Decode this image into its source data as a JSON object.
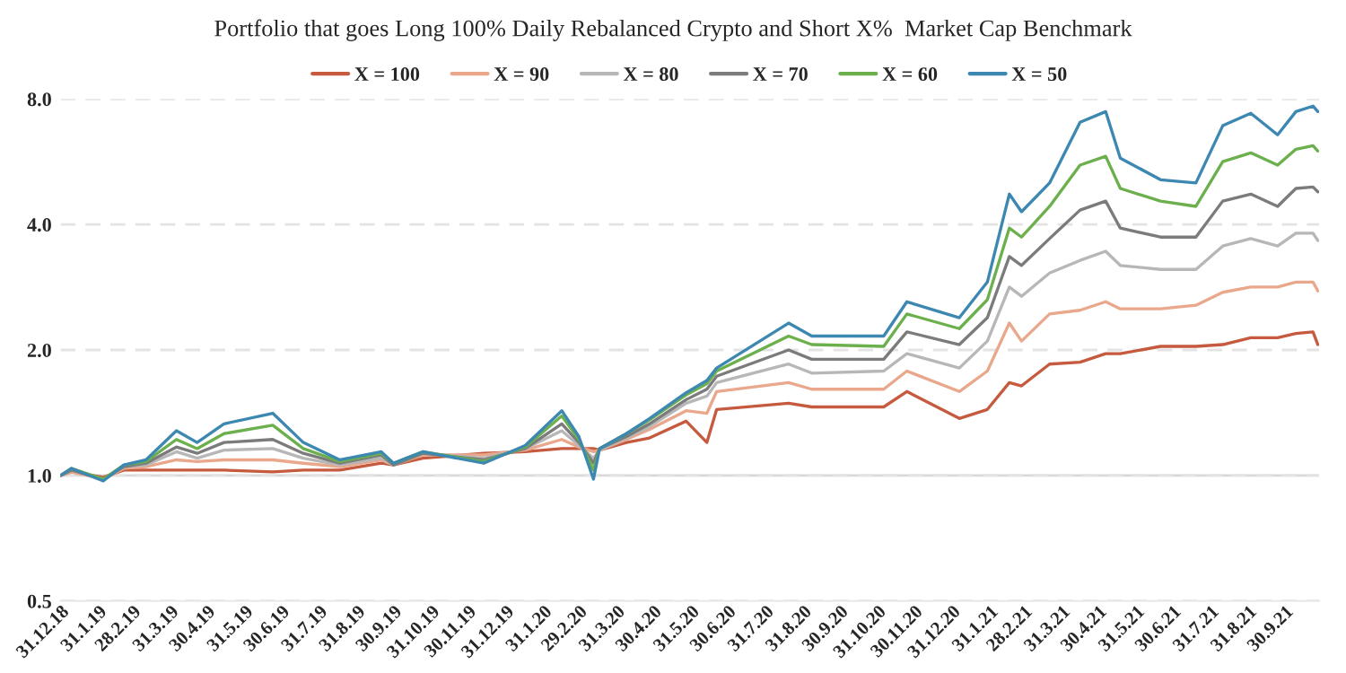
{
  "chart_data": {
    "type": "line",
    "title": "Portfolio that goes Long 100% Daily Rebalanced Crypto and Short X%  Market Cap Benchmark",
    "x": [
      "2018-12-31",
      "2019-01-09",
      "2019-02-04",
      "2019-02-21",
      "2019-03-11",
      "2019-04-05",
      "2019-04-22",
      "2019-05-14",
      "2019-06-23",
      "2019-07-18",
      "2019-08-17",
      "2019-09-20",
      "2019-09-30",
      "2019-10-24",
      "2019-12-13",
      "2020-01-16",
      "2020-02-15",
      "2020-02-29",
      "2020-03-12",
      "2020-03-17",
      "2020-04-08",
      "2020-04-27",
      "2020-05-27",
      "2020-06-13",
      "2020-06-21",
      "2020-08-19",
      "2020-09-07",
      "2020-11-05",
      "2020-11-24",
      "2021-01-06",
      "2021-01-29",
      "2021-02-16",
      "2021-02-26",
      "2021-03-21",
      "2021-04-15",
      "2021-05-06",
      "2021-05-18",
      "2021-06-20",
      "2021-07-19",
      "2021-08-10",
      "2021-09-02",
      "2021-09-24",
      "2021-10-09",
      "2021-10-23",
      "2021-10-27"
    ],
    "series": [
      {
        "name": "X = 100",
        "color": "#c65a3f",
        "values": [
          1.0,
          1.02,
          0.99,
          1.03,
          1.03,
          1.03,
          1.03,
          1.03,
          1.02,
          1.03,
          1.03,
          1.07,
          1.06,
          1.1,
          1.13,
          1.14,
          1.16,
          1.16,
          1.16,
          1.15,
          1.2,
          1.23,
          1.35,
          1.2,
          1.44,
          1.49,
          1.46,
          1.46,
          1.59,
          1.37,
          1.44,
          1.67,
          1.64,
          1.85,
          1.87,
          1.96,
          1.96,
          2.04,
          2.04,
          2.06,
          2.14,
          2.14,
          2.19,
          2.21,
          2.06
        ]
      },
      {
        "name": "X = 90",
        "color": "#e9a88c",
        "values": [
          1.0,
          1.02,
          0.98,
          1.04,
          1.05,
          1.09,
          1.08,
          1.09,
          1.09,
          1.07,
          1.05,
          1.09,
          1.06,
          1.12,
          1.12,
          1.15,
          1.22,
          1.17,
          1.14,
          1.15,
          1.22,
          1.29,
          1.43,
          1.41,
          1.59,
          1.67,
          1.61,
          1.61,
          1.78,
          1.59,
          1.78,
          2.32,
          2.1,
          2.44,
          2.49,
          2.61,
          2.51,
          2.51,
          2.56,
          2.75,
          2.83,
          2.83,
          2.91,
          2.91,
          2.77
        ]
      },
      {
        "name": "X = 80",
        "color": "#b7b7b7",
        "values": [
          1.0,
          1.03,
          0.98,
          1.05,
          1.06,
          1.14,
          1.1,
          1.15,
          1.16,
          1.1,
          1.06,
          1.1,
          1.06,
          1.13,
          1.1,
          1.16,
          1.28,
          1.18,
          1.1,
          1.15,
          1.23,
          1.31,
          1.49,
          1.55,
          1.67,
          1.85,
          1.76,
          1.78,
          1.96,
          1.81,
          2.1,
          2.83,
          2.69,
          3.06,
          3.28,
          3.45,
          3.19,
          3.12,
          3.12,
          3.55,
          3.7,
          3.55,
          3.81,
          3.81,
          3.66
        ]
      },
      {
        "name": "X = 70",
        "color": "#7b7b7b",
        "values": [
          1.0,
          1.03,
          0.98,
          1.05,
          1.07,
          1.17,
          1.13,
          1.2,
          1.22,
          1.13,
          1.07,
          1.12,
          1.06,
          1.13,
          1.09,
          1.16,
          1.33,
          1.2,
          1.07,
          1.16,
          1.24,
          1.33,
          1.52,
          1.61,
          1.73,
          2.0,
          1.9,
          1.9,
          2.21,
          2.06,
          2.39,
          3.35,
          3.19,
          3.7,
          4.33,
          4.55,
          3.92,
          3.73,
          3.73,
          4.55,
          4.73,
          4.42,
          4.88,
          4.92,
          4.79
        ]
      },
      {
        "name": "X = 60",
        "color": "#6cb04e",
        "values": [
          1.0,
          1.04,
          0.98,
          1.06,
          1.08,
          1.22,
          1.16,
          1.26,
          1.32,
          1.16,
          1.08,
          1.13,
          1.07,
          1.14,
          1.08,
          1.17,
          1.39,
          1.22,
          1.03,
          1.16,
          1.26,
          1.36,
          1.56,
          1.66,
          1.78,
          2.16,
          2.06,
          2.04,
          2.44,
          2.25,
          2.64,
          3.92,
          3.73,
          4.42,
          5.55,
          5.83,
          4.88,
          4.55,
          4.42,
          5.66,
          5.94,
          5.55,
          6.06,
          6.18,
          6.0
        ]
      },
      {
        "name": "X = 50",
        "color": "#3c88b1",
        "values": [
          1.0,
          1.04,
          0.97,
          1.06,
          1.09,
          1.28,
          1.2,
          1.33,
          1.41,
          1.2,
          1.09,
          1.14,
          1.07,
          1.14,
          1.07,
          1.18,
          1.43,
          1.24,
          0.98,
          1.16,
          1.26,
          1.37,
          1.58,
          1.69,
          1.81,
          2.32,
          2.16,
          2.16,
          2.61,
          2.39,
          2.91,
          4.73,
          4.29,
          5.03,
          7.03,
          7.46,
          5.77,
          5.12,
          5.03,
          6.9,
          7.39,
          6.56,
          7.46,
          7.69,
          7.46
        ]
      }
    ],
    "log": true,
    "xlim": [
      "2018-12-31",
      "2021-10-28"
    ],
    "xticks": [
      {
        "value": "2018-12-31",
        "label": "31.12.18"
      },
      {
        "value": "2019-01-31",
        "label": "31.1.19"
      },
      {
        "value": "2019-02-28",
        "label": "28.2.19"
      },
      {
        "value": "2019-03-31",
        "label": "31.3.19"
      },
      {
        "value": "2019-04-30",
        "label": "30.4.19"
      },
      {
        "value": "2019-05-31",
        "label": "31.5.19"
      },
      {
        "value": "2019-06-30",
        "label": "30.6.19"
      },
      {
        "value": "2019-07-31",
        "label": "31.7.19"
      },
      {
        "value": "2019-08-31",
        "label": "31.8.19"
      },
      {
        "value": "2019-09-30",
        "label": "30.9.19"
      },
      {
        "value": "2019-10-31",
        "label": "31.10.19"
      },
      {
        "value": "2019-11-30",
        "label": "30.11.19"
      },
      {
        "value": "2019-12-31",
        "label": "31.12.19"
      },
      {
        "value": "2020-01-31",
        "label": "31.1.20"
      },
      {
        "value": "2020-02-29",
        "label": "29.2.20"
      },
      {
        "value": "2020-03-31",
        "label": "31.3.20"
      },
      {
        "value": "2020-04-30",
        "label": "30.4.20"
      },
      {
        "value": "2020-05-31",
        "label": "31.5.20"
      },
      {
        "value": "2020-06-30",
        "label": "30.6.20"
      },
      {
        "value": "2020-07-31",
        "label": "31.7.20"
      },
      {
        "value": "2020-08-31",
        "label": "31.8.20"
      },
      {
        "value": "2020-09-30",
        "label": "30.9.20"
      },
      {
        "value": "2020-10-31",
        "label": "31.10.20"
      },
      {
        "value": "2020-11-30",
        "label": "30.11.20"
      },
      {
        "value": "2020-12-31",
        "label": "31.12.20"
      },
      {
        "value": "2021-01-31",
        "label": "31.1.21"
      },
      {
        "value": "2021-02-28",
        "label": "28.2.21"
      },
      {
        "value": "2021-03-31",
        "label": "31.3.21"
      },
      {
        "value": "2021-04-30",
        "label": "30.4.21"
      },
      {
        "value": "2021-05-31",
        "label": "31.5.21"
      },
      {
        "value": "2021-06-30",
        "label": "30.6.21"
      },
      {
        "value": "2021-07-31",
        "label": "31.7.21"
      },
      {
        "value": "2021-08-31",
        "label": "31.8.21"
      },
      {
        "value": "2021-09-30",
        "label": "30.9.21"
      }
    ],
    "ylim": [
      0.5,
      8.0
    ],
    "yticks": [
      {
        "value": 0.5,
        "label": "0.5"
      },
      {
        "value": 1.0,
        "label": "1.0"
      },
      {
        "value": 2.0,
        "label": "2.0"
      },
      {
        "value": 4.0,
        "label": "4.0"
      },
      {
        "value": 8.0,
        "label": "8.0"
      }
    ],
    "grid": "y",
    "legend": "top",
    "marker": "none",
    "line_style": "solid",
    "ref_lines": [
      {
        "axis": "y",
        "value": 1.0,
        "color": "#d9d9d9",
        "line_style": "solid"
      }
    ]
  }
}
